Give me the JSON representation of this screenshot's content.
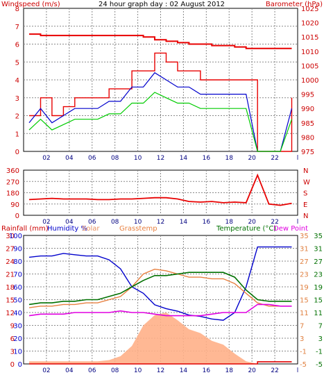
{
  "title": "24 hour graph day : 02 August 2012",
  "panel1": {
    "left_label": "Windspeed (m/s)",
    "right_label": "Barometer (hPa)",
    "left_ticks": [
      "0",
      "1",
      "2",
      "3",
      "4",
      "5",
      "6",
      "7",
      "8"
    ],
    "right_ticks": [
      "975",
      "980",
      "985",
      "990",
      "995",
      "1000",
      "1005",
      "1010",
      "1015",
      "1020",
      "1025"
    ]
  },
  "panel2": {
    "left_ticks": [
      "0",
      "90",
      "180",
      "270",
      "360"
    ],
    "right_ticks": [
      "N",
      "E",
      "S",
      "W",
      "N"
    ]
  },
  "panel3": {
    "labels": {
      "rainfall": "Rainfall (mm)",
      "humidity": "Humidity %",
      "solar": "Solar",
      "grasstemp": "Grasstemp",
      "temperature": "Temperature (°C)",
      "dewpoint": "Dew Point"
    },
    "rain_ticks": [
      "0",
      "3",
      "6",
      "9",
      "12",
      "15",
      "18",
      "21",
      "24",
      "27",
      "30"
    ],
    "humidity_ticks": [
      "0",
      "10",
      "20",
      "30",
      "40",
      "50",
      "60",
      "70",
      "80",
      "90",
      "100"
    ],
    "temp_ticks_inner": [
      "-5",
      "-1",
      "3",
      "7",
      "11",
      "15",
      "19",
      "23",
      "27",
      "31",
      "35"
    ],
    "temp_ticks_outer": [
      "-5",
      "-1",
      "3",
      "7",
      "11",
      "15",
      "19",
      "23",
      "27",
      "31",
      "35"
    ]
  },
  "x_ticks": [
    "02",
    "04",
    "06",
    "08",
    "10",
    "12",
    "14",
    "16",
    "18",
    "20",
    "22",
    "l"
  ],
  "colors": {
    "grid": "#888888",
    "windspeed": "#e80000",
    "wind_avg": "#0000cc",
    "wind_low": "#00cc00",
    "barometer": "#e80000",
    "direction": "#e80000",
    "humidity": "#0000cc",
    "solar": "#ffb088",
    "grasstemp": "#e88040",
    "temperature": "#007000",
    "dewpoint": "#e000e0",
    "rainfall": "#e00000"
  },
  "chart_data": [
    {
      "type": "line",
      "title": "24 hour graph day : 02 August 2012",
      "xlabel": "",
      "x": [
        0,
        1,
        2,
        3,
        4,
        5,
        6,
        7,
        8,
        9,
        10,
        11,
        12,
        13,
        14,
        15,
        16,
        17,
        18,
        19,
        20,
        21,
        22,
        23
      ],
      "ylabel": "Windspeed (m/s)",
      "ylim": [
        0,
        8
      ],
      "y2label": "Barometer (hPa)",
      "y2lim": [
        975,
        1025
      ],
      "series": [
        {
          "name": "Windspeed (m/s)",
          "axis": "left",
          "values": [
            2,
            3,
            2,
            2.5,
            3,
            3,
            3,
            3.5,
            3.5,
            4.5,
            4.5,
            5.5,
            5,
            4.5,
            4.5,
            4,
            4,
            4,
            4,
            4,
            0,
            0,
            0,
            3
          ]
        },
        {
          "name": "Barometer (hPa)",
          "axis": "right",
          "values": [
            1016,
            1015.5,
            1015.5,
            1015.5,
            1015.5,
            1015.5,
            1015.5,
            1015.5,
            1015.5,
            1015.5,
            1015,
            1014,
            1013.5,
            1013,
            1012.5,
            1012.5,
            1012,
            1012,
            1011.5,
            1011,
            1011,
            1011,
            1011,
            1011
          ]
        }
      ]
    },
    {
      "type": "line",
      "xlabel": "",
      "ylabel": "",
      "ylim": [
        0,
        360
      ],
      "x": [
        0,
        1,
        2,
        3,
        4,
        5,
        6,
        7,
        8,
        9,
        10,
        11,
        12,
        13,
        14,
        15,
        16,
        17,
        18,
        19,
        20,
        21,
        22,
        23
      ],
      "series": [
        {
          "name": "Wind direction",
          "values": [
            125,
            130,
            135,
            130,
            130,
            130,
            125,
            125,
            130,
            130,
            135,
            140,
            140,
            130,
            110,
            105,
            110,
            100,
            105,
            100,
            320,
            90,
            80,
            95
          ]
        }
      ]
    },
    {
      "type": "line",
      "xlabel": "",
      "ylabel": "",
      "x": [
        0,
        1,
        2,
        3,
        4,
        5,
        6,
        7,
        8,
        9,
        10,
        11,
        12,
        13,
        14,
        15,
        16,
        17,
        18,
        19,
        20,
        21,
        22,
        23
      ],
      "series": [
        {
          "name": "Humidity %",
          "axis": "humidity",
          "ylim": [
            0,
            100
          ],
          "values": [
            83,
            84,
            84,
            86,
            85,
            84,
            84,
            81,
            74,
            60,
            55,
            46,
            43,
            41,
            38,
            37,
            35,
            34,
            40,
            60,
            91,
            91,
            91,
            91
          ]
        },
        {
          "name": "Temperature (°C)",
          "axis": "temp",
          "ylim": [
            -5,
            35
          ],
          "values": [
            13.5,
            14,
            14,
            14.5,
            14.5,
            15,
            15,
            16,
            17,
            19,
            21,
            22.5,
            22.5,
            23,
            23.5,
            23.5,
            23.5,
            23.5,
            22,
            18,
            15,
            14.5,
            14.5,
            14.5
          ]
        },
        {
          "name": "Dew Point",
          "axis": "temp",
          "ylim": [
            -5,
            35
          ],
          "values": [
            10,
            10.5,
            10.5,
            10.5,
            11,
            11,
            11,
            11,
            11.5,
            11,
            11,
            10.5,
            10,
            10,
            10,
            10,
            10.5,
            11,
            11,
            11,
            13.5,
            13.5,
            13,
            13
          ]
        },
        {
          "name": "Grasstemp",
          "axis": "temp",
          "ylim": [
            -5,
            35
          ],
          "values": [
            12.5,
            13,
            13,
            13.5,
            13.5,
            14,
            14,
            15,
            16,
            19,
            23,
            24.5,
            24,
            23,
            22,
            22,
            21.5,
            21.5,
            20,
            17,
            14,
            13,
            13,
            13
          ]
        },
        {
          "name": "Solar",
          "axis": "humidity",
          "ylim": [
            0,
            100
          ],
          "values": [
            2,
            2,
            2,
            2,
            2,
            2,
            2,
            3,
            6,
            14,
            30,
            38,
            40,
            34,
            27,
            24,
            18,
            15,
            8,
            2,
            0,
            0,
            0,
            0
          ]
        },
        {
          "name": "Rainfall (mm)",
          "axis": "rain",
          "ylim": [
            0,
            30
          ],
          "values": [
            0,
            0,
            0,
            0,
            0,
            0,
            0,
            0,
            0,
            0,
            0,
            0,
            0,
            0,
            0,
            0,
            0,
            0,
            0,
            0,
            0.5,
            0.5,
            0.5,
            0.5
          ]
        }
      ]
    }
  ]
}
